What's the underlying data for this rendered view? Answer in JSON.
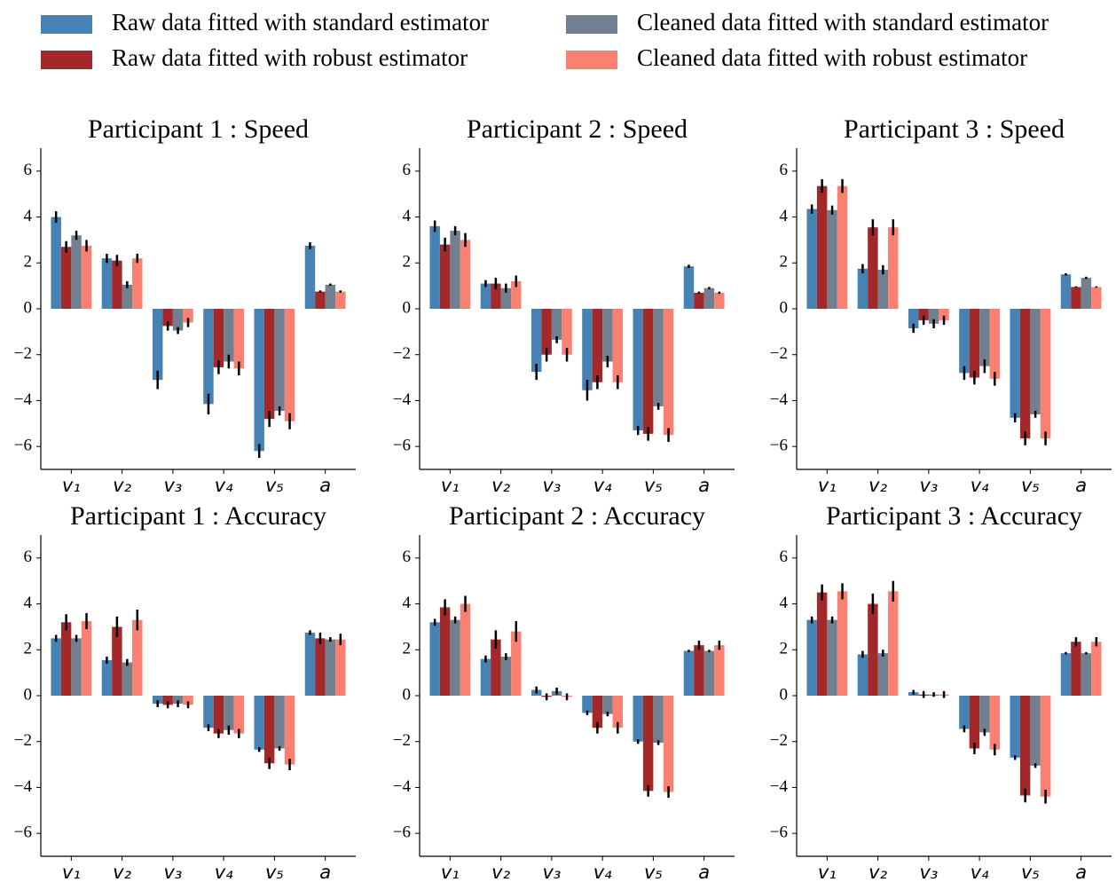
{
  "legend": [
    {
      "name": "Raw data fitted with standard estimator",
      "color": "#4682b4"
    },
    {
      "name": "Raw data fitted with robust estimator",
      "color": "#a3282a"
    },
    {
      "name": "Cleaned data fitted with standard estimator",
      "color": "#708090"
    },
    {
      "name": "Cleaned data fitted with robust estimator",
      "color": "#fa8072"
    }
  ],
  "chart_data": [
    {
      "type": "bar",
      "title": "Participant 1 : Speed",
      "categories": [
        "v₁",
        "v₂",
        "v₃",
        "v₄",
        "v₅",
        "a"
      ],
      "series": [
        {
          "values": [
            4.0,
            2.2,
            -3.1,
            -4.15,
            -6.2,
            2.75
          ],
          "errors": [
            0.25,
            0.2,
            0.4,
            0.45,
            0.3,
            0.15
          ]
        },
        {
          "values": [
            2.7,
            2.1,
            -0.75,
            -2.55,
            -4.8,
            0.75
          ],
          "errors": [
            0.25,
            0.25,
            0.2,
            0.3,
            0.35,
            0.05
          ]
        },
        {
          "values": [
            3.2,
            1.05,
            -0.95,
            -2.3,
            -4.45,
            1.05
          ],
          "errors": [
            0.2,
            0.15,
            0.15,
            0.3,
            0.2,
            0.05
          ]
        },
        {
          "values": [
            2.75,
            2.2,
            -0.6,
            -2.6,
            -4.9,
            0.75
          ],
          "errors": [
            0.25,
            0.2,
            0.2,
            0.3,
            0.35,
            0.05
          ]
        }
      ],
      "ylim": [
        -7,
        7
      ],
      "yticks": [
        {
          "value": -6,
          "label": "−6"
        },
        {
          "value": -4,
          "label": "−4"
        },
        {
          "value": -2,
          "label": "−2"
        },
        0,
        2,
        4,
        6
      ]
    },
    {
      "type": "bar",
      "title": "Participant 2 : Speed",
      "categories": [
        "v₁",
        "v₂",
        "v₃",
        "v₄",
        "v₅",
        "a"
      ],
      "series": [
        {
          "values": [
            3.6,
            1.1,
            -2.75,
            -3.55,
            -5.3,
            1.85
          ],
          "errors": [
            0.25,
            0.15,
            0.35,
            0.45,
            0.2,
            0.07
          ]
        },
        {
          "values": [
            2.8,
            1.1,
            -2.0,
            -3.2,
            -5.45,
            0.7
          ],
          "errors": [
            0.3,
            0.25,
            0.3,
            0.3,
            0.3,
            0.05
          ]
        },
        {
          "values": [
            3.4,
            0.9,
            -1.35,
            -2.3,
            -4.25,
            0.9
          ],
          "errors": [
            0.2,
            0.2,
            0.15,
            0.25,
            0.15,
            0.05
          ]
        },
        {
          "values": [
            3.0,
            1.2,
            -2.0,
            -3.2,
            -5.5,
            0.7
          ],
          "errors": [
            0.3,
            0.25,
            0.3,
            0.3,
            0.3,
            0.05
          ]
        }
      ],
      "ylim": [
        -7,
        7
      ],
      "yticks": [
        {
          "value": -6,
          "label": "−6"
        },
        {
          "value": -4,
          "label": "−4"
        },
        {
          "value": -2,
          "label": "−2"
        },
        0,
        2,
        4,
        6
      ]
    },
    {
      "type": "bar",
      "title": "Participant 3 : Speed",
      "categories": [
        "v₁",
        "v₂",
        "v₃",
        "v₄",
        "v₅",
        "a"
      ],
      "series": [
        {
          "values": [
            4.35,
            1.75,
            -0.85,
            -2.8,
            -4.75,
            1.5
          ],
          "errors": [
            0.2,
            0.2,
            0.2,
            0.3,
            0.2,
            0.05
          ]
        },
        {
          "values": [
            5.35,
            3.55,
            -0.5,
            -3.0,
            -5.65,
            0.95
          ],
          "errors": [
            0.3,
            0.35,
            0.2,
            0.3,
            0.3,
            0.03
          ]
        },
        {
          "values": [
            4.3,
            1.7,
            -0.65,
            -2.5,
            -4.6,
            1.35
          ],
          "errors": [
            0.2,
            0.2,
            0.2,
            0.3,
            0.15,
            0.05
          ]
        },
        {
          "values": [
            5.35,
            3.55,
            -0.5,
            -3.05,
            -5.65,
            0.95
          ],
          "errors": [
            0.3,
            0.35,
            0.2,
            0.3,
            0.3,
            0.03
          ]
        }
      ],
      "ylim": [
        -7,
        7
      ],
      "yticks": [
        {
          "value": -6,
          "label": "−6"
        },
        {
          "value": -4,
          "label": "−4"
        },
        {
          "value": -2,
          "label": "−2"
        },
        0,
        2,
        4,
        6
      ]
    },
    {
      "type": "bar",
      "title": "Participant 1 : Accuracy",
      "categories": [
        "v₁",
        "v₂",
        "v₃",
        "v₄",
        "v₅",
        "a"
      ],
      "series": [
        {
          "values": [
            2.5,
            1.55,
            -0.35,
            -1.4,
            -2.35,
            2.75
          ],
          "errors": [
            0.15,
            0.15,
            0.15,
            0.15,
            0.1,
            0.1
          ]
        },
        {
          "values": [
            3.2,
            3.0,
            -0.4,
            -1.65,
            -2.95,
            2.5
          ],
          "errors": [
            0.35,
            0.45,
            0.15,
            0.2,
            0.25,
            0.25
          ]
        },
        {
          "values": [
            2.5,
            1.45,
            -0.35,
            -1.5,
            -2.3,
            2.45
          ],
          "errors": [
            0.15,
            0.15,
            0.15,
            0.2,
            0.1,
            0.1
          ]
        },
        {
          "values": [
            3.25,
            3.3,
            -0.4,
            -1.65,
            -3.0,
            2.45
          ],
          "errors": [
            0.35,
            0.45,
            0.15,
            0.2,
            0.25,
            0.25
          ]
        }
      ],
      "ylim": [
        -7,
        7
      ],
      "yticks": [
        {
          "value": -6,
          "label": "−6"
        },
        {
          "value": -4,
          "label": "−4"
        },
        {
          "value": -2,
          "label": "−2"
        },
        0,
        2,
        4,
        6
      ]
    },
    {
      "type": "bar",
      "title": "Participant 2 : Accuracy",
      "categories": [
        "v₁",
        "v₂",
        "v₃",
        "v₄",
        "v₅",
        "a"
      ],
      "series": [
        {
          "values": [
            3.2,
            1.6,
            0.25,
            -0.75,
            -2.0,
            1.95
          ],
          "errors": [
            0.15,
            0.15,
            0.15,
            0.1,
            0.1,
            0.05
          ]
        },
        {
          "values": [
            3.85,
            2.45,
            -0.05,
            -1.4,
            -4.15,
            2.2
          ],
          "errors": [
            0.35,
            0.4,
            0.15,
            0.25,
            0.25,
            0.2
          ]
        },
        {
          "values": [
            3.3,
            1.7,
            0.2,
            -0.8,
            -2.05,
            1.95
          ],
          "errors": [
            0.15,
            0.15,
            0.15,
            0.1,
            0.1,
            0.05
          ]
        },
        {
          "values": [
            4.0,
            2.8,
            -0.05,
            -1.4,
            -4.2,
            2.2
          ],
          "errors": [
            0.35,
            0.45,
            0.15,
            0.25,
            0.25,
            0.2
          ]
        }
      ],
      "ylim": [
        -7,
        7
      ],
      "yticks": [
        {
          "value": -6,
          "label": "−6"
        },
        {
          "value": -4,
          "label": "−4"
        },
        {
          "value": -2,
          "label": "−2"
        },
        0,
        2,
        4,
        6
      ]
    },
    {
      "type": "bar",
      "title": "Participant 3 : Accuracy",
      "categories": [
        "v₁",
        "v₂",
        "v₃",
        "v₄",
        "v₅",
        "a"
      ],
      "series": [
        {
          "values": [
            3.3,
            1.8,
            0.15,
            -1.45,
            -2.7,
            1.85
          ],
          "errors": [
            0.15,
            0.15,
            0.1,
            0.15,
            0.1,
            0.05
          ]
        },
        {
          "values": [
            4.5,
            4.0,
            0.05,
            -2.3,
            -4.35,
            2.35
          ],
          "errors": [
            0.35,
            0.45,
            0.15,
            0.25,
            0.3,
            0.2
          ]
        },
        {
          "values": [
            3.3,
            1.85,
            0.05,
            -1.6,
            -3.05,
            1.85
          ],
          "errors": [
            0.15,
            0.15,
            0.1,
            0.15,
            0.1,
            0.05
          ]
        },
        {
          "values": [
            4.55,
            4.55,
            0.05,
            -2.35,
            -4.4,
            2.35
          ],
          "errors": [
            0.35,
            0.45,
            0.15,
            0.25,
            0.3,
            0.2
          ]
        }
      ],
      "ylim": [
        -7,
        7
      ],
      "yticks": [
        {
          "value": -6,
          "label": "−6"
        },
        {
          "value": -4,
          "label": "−4"
        },
        {
          "value": -2,
          "label": "−2"
        },
        0,
        2,
        4,
        6
      ]
    }
  ]
}
